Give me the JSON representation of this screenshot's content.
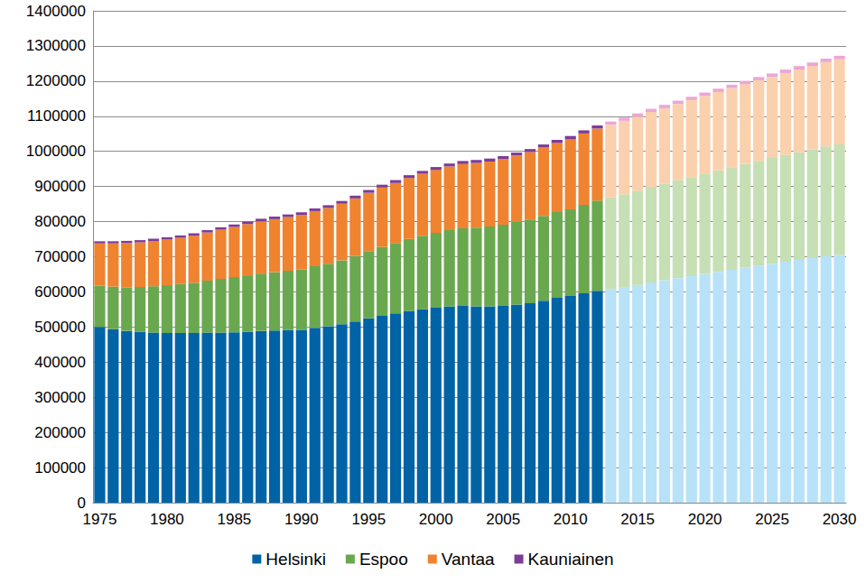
{
  "chart_data": {
    "type": "bar",
    "stacked": true,
    "grid": true,
    "legend": "bottom",
    "categories": [
      "1975",
      null,
      null,
      null,
      null,
      "1980",
      null,
      null,
      null,
      null,
      "1985",
      null,
      null,
      null,
      null,
      "1990",
      null,
      null,
      null,
      null,
      "1995",
      null,
      null,
      null,
      null,
      "2000",
      null,
      null,
      null,
      null,
      "2005",
      null,
      null,
      null,
      null,
      "2010",
      null,
      null,
      null,
      null,
      "2015",
      null,
      null,
      null,
      null,
      "2020",
      null,
      null,
      null,
      null,
      "2025",
      null,
      null,
      null,
      null,
      "2030"
    ],
    "ylim": [
      0,
      1400000
    ],
    "yticks": [
      0,
      100000,
      200000,
      300000,
      400000,
      500000,
      600000,
      700000,
      800000,
      900000,
      1000000,
      1100000,
      1200000,
      1300000,
      1400000
    ],
    "series": [
      {
        "name": "Helsinki",
        "color": "#0063a6",
        "values": [
          500000,
          494000,
          489000,
          486000,
          484000,
          483000,
          483000,
          483000,
          484000,
          484000,
          485000,
          487000,
          489000,
          490000,
          491000,
          492000,
          498000,
          502000,
          508000,
          516000,
          525000,
          532000,
          539000,
          546000,
          551000,
          555000,
          559000,
          560000,
          559000,
          559000,
          560000,
          564000,
          568000,
          575000,
          583000,
          588000,
          596000,
          603000,
          608000,
          614000,
          620000,
          627000,
          633000,
          639000,
          645000,
          651000,
          657000,
          663000,
          669000,
          675000,
          680000,
          686000,
          691000,
          696000,
          701000,
          705000
        ],
        "colors": [
          "#0063a6",
          "#0063a6",
          "#0063a6",
          "#0063a6",
          "#0063a6",
          "#0063a6",
          "#0063a6",
          "#0063a6",
          "#0063a6",
          "#0063a6",
          "#0063a6",
          "#0063a6",
          "#0063a6",
          "#0063a6",
          "#0063a6",
          "#0063a6",
          "#0063a6",
          "#0063a6",
          "#0063a6",
          "#0063a6",
          "#0063a6",
          "#0063a6",
          "#0063a6",
          "#0063a6",
          "#0063a6",
          "#0063a6",
          "#0063a6",
          "#0063a6",
          "#0063a6",
          "#0063a6",
          "#0063a6",
          "#0063a6",
          "#0063a6",
          "#0063a6",
          "#0063a6",
          "#0063a6",
          "#0063a6",
          "#0063a6",
          "#b8e2f8",
          "#b8e2f8",
          "#b8e2f8",
          "#b8e2f8",
          "#b8e2f8",
          "#b8e2f8",
          "#b8e2f8",
          "#b8e2f8",
          "#b8e2f8",
          "#b8e2f8",
          "#b8e2f8",
          "#b8e2f8",
          "#b8e2f8",
          "#b8e2f8",
          "#b8e2f8",
          "#b8e2f8",
          "#b8e2f8",
          "#b8e2f8"
        ]
      },
      {
        "name": "Espoo",
        "color": "#6aa84f",
        "values": [
          118000,
          121000,
          124000,
          128000,
          132000,
          136000,
          139000,
          143000,
          148000,
          153000,
          157000,
          160000,
          163000,
          166000,
          169000,
          172000,
          175000,
          178000,
          182000,
          186000,
          191000,
          196000,
          200000,
          205000,
          209000,
          213000,
          217000,
          221000,
          224000,
          227000,
          231000,
          235000,
          238000,
          241000,
          244000,
          247000,
          252000,
          257000,
          261000,
          264000,
          268000,
          272000,
          275000,
          279000,
          282000,
          286000,
          289000,
          292000,
          295000,
          298000,
          301000,
          304000,
          307000,
          310000,
          313000,
          315000
        ],
        "colors": [
          "#6aa84f",
          "#6aa84f",
          "#6aa84f",
          "#6aa84f",
          "#6aa84f",
          "#6aa84f",
          "#6aa84f",
          "#6aa84f",
          "#6aa84f",
          "#6aa84f",
          "#6aa84f",
          "#6aa84f",
          "#6aa84f",
          "#6aa84f",
          "#6aa84f",
          "#6aa84f",
          "#6aa84f",
          "#6aa84f",
          "#6aa84f",
          "#6aa84f",
          "#6aa84f",
          "#6aa84f",
          "#6aa84f",
          "#6aa84f",
          "#6aa84f",
          "#6aa84f",
          "#6aa84f",
          "#6aa84f",
          "#6aa84f",
          "#6aa84f",
          "#6aa84f",
          "#6aa84f",
          "#6aa84f",
          "#6aa84f",
          "#6aa84f",
          "#6aa84f",
          "#6aa84f",
          "#6aa84f",
          "#c6dfb4",
          "#c6dfb4",
          "#c6dfb4",
          "#c6dfb4",
          "#c6dfb4",
          "#c6dfb4",
          "#c6dfb4",
          "#c6dfb4",
          "#c6dfb4",
          "#c6dfb4",
          "#c6dfb4",
          "#c6dfb4",
          "#c6dfb4",
          "#c6dfb4",
          "#c6dfb4",
          "#c6dfb4",
          "#c6dfb4",
          "#c6dfb4"
        ]
      },
      {
        "name": "Vantaa",
        "color": "#f0832f",
        "values": [
          120000,
          123000,
          126000,
          127000,
          129000,
          130000,
          132000,
          134000,
          137000,
          140000,
          143000,
          146000,
          149000,
          151000,
          153000,
          155000,
          157000,
          159000,
          161000,
          164000,
          166000,
          169000,
          171000,
          173000,
          176000,
          179000,
          181000,
          183000,
          184000,
          185000,
          187000,
          189000,
          192000,
          195000,
          197000,
          200000,
          203000,
          205000,
          207000,
          209000,
          211000,
          213000,
          215000,
          217000,
          219000,
          221000,
          223000,
          225000,
          227000,
          229000,
          231000,
          233000,
          235000,
          237000,
          240000,
          242000
        ],
        "colors": [
          "#f0832f",
          "#f0832f",
          "#f0832f",
          "#f0832f",
          "#f0832f",
          "#f0832f",
          "#f0832f",
          "#f0832f",
          "#f0832f",
          "#f0832f",
          "#f0832f",
          "#f0832f",
          "#f0832f",
          "#f0832f",
          "#f0832f",
          "#f0832f",
          "#f0832f",
          "#f0832f",
          "#f0832f",
          "#f0832f",
          "#f0832f",
          "#f0832f",
          "#f0832f",
          "#f0832f",
          "#f0832f",
          "#f0832f",
          "#f0832f",
          "#f0832f",
          "#f0832f",
          "#f0832f",
          "#f0832f",
          "#f0832f",
          "#f0832f",
          "#f0832f",
          "#f0832f",
          "#f0832f",
          "#f0832f",
          "#f0832f",
          "#fbd0ad",
          "#fbd0ad",
          "#fbd0ad",
          "#fbd0ad",
          "#fbd0ad",
          "#fbd0ad",
          "#fbd0ad",
          "#fbd0ad",
          "#fbd0ad",
          "#fbd0ad",
          "#fbd0ad",
          "#fbd0ad",
          "#fbd0ad",
          "#fbd0ad",
          "#fbd0ad",
          "#fbd0ad",
          "#fbd0ad",
          "#fbd0ad"
        ]
      },
      {
        "name": "Kauniainen",
        "color": "#7d3c98",
        "values": [
          6000,
          6100,
          6200,
          6300,
          6400,
          6500,
          6600,
          6700,
          6800,
          6900,
          7000,
          7100,
          7200,
          7300,
          7400,
          7500,
          7600,
          7700,
          7800,
          7900,
          8000,
          8100,
          8200,
          8200,
          8300,
          8400,
          8400,
          8500,
          8500,
          8500,
          8500,
          8500,
          8600,
          8600,
          8700,
          8700,
          8800,
          8800,
          8900,
          9000,
          9000,
          9100,
          9200,
          9200,
          9300,
          9400,
          9400,
          9500,
          9600,
          9600,
          9700,
          9800,
          9800,
          9900,
          9900,
          10000
        ],
        "colors": [
          "#7d3c98",
          "#7d3c98",
          "#7d3c98",
          "#7d3c98",
          "#7d3c98",
          "#7d3c98",
          "#7d3c98",
          "#7d3c98",
          "#7d3c98",
          "#7d3c98",
          "#7d3c98",
          "#7d3c98",
          "#7d3c98",
          "#7d3c98",
          "#7d3c98",
          "#7d3c98",
          "#7d3c98",
          "#7d3c98",
          "#7d3c98",
          "#7d3c98",
          "#7d3c98",
          "#7d3c98",
          "#7d3c98",
          "#7d3c98",
          "#7d3c98",
          "#7d3c98",
          "#7d3c98",
          "#7d3c98",
          "#7d3c98",
          "#7d3c98",
          "#7d3c98",
          "#7d3c98",
          "#7d3c98",
          "#7d3c98",
          "#7d3c98",
          "#7d3c98",
          "#7d3c98",
          "#7d3c98",
          "#eba6d6",
          "#eba6d6",
          "#eba6d6",
          "#eba6d6",
          "#eba6d6",
          "#eba6d6",
          "#eba6d6",
          "#eba6d6",
          "#eba6d6",
          "#eba6d6",
          "#eba6d6",
          "#eba6d6",
          "#eba6d6",
          "#eba6d6",
          "#eba6d6",
          "#eba6d6",
          "#eba6d6",
          "#eba6d6"
        ]
      }
    ]
  }
}
